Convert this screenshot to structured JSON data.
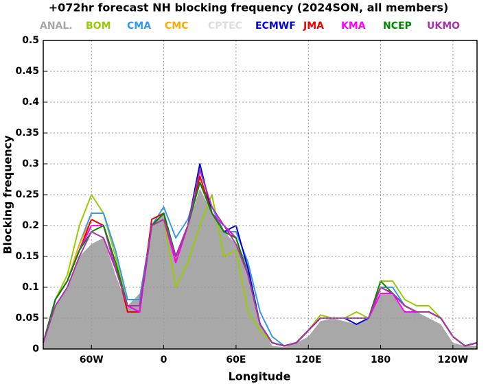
{
  "chart_data": {
    "type": "line",
    "title": "+072hr forecast NH blocking frequency (2024SON, all members)",
    "x_label": "Longitude",
    "y_label": "Blocking frequency",
    "xlim": [
      -100,
      260
    ],
    "ylim": [
      0,
      0.5
    ],
    "xticks": [
      {
        "value": -60,
        "label": "60W"
      },
      0,
      {
        "value": 60,
        "label": "60E"
      },
      {
        "value": 120,
        "label": "120E"
      },
      180,
      {
        "value": 240,
        "label": "120W"
      }
    ],
    "yticks": [
      0,
      0.05,
      0.1,
      0.15,
      0.2,
      0.25,
      0.3,
      0.35,
      0.4,
      0.45,
      0.5
    ],
    "grid": true,
    "x": [
      -100,
      -90,
      -80,
      -70,
      -60,
      -50,
      -40,
      -30,
      -20,
      -10,
      0,
      10,
      20,
      30,
      40,
      50,
      60,
      70,
      80,
      90,
      100,
      110,
      120,
      130,
      140,
      150,
      160,
      170,
      180,
      190,
      200,
      210,
      220,
      230,
      240,
      250,
      260
    ],
    "series": [
      {
        "name": "ANAL.",
        "color": "#a8a8a8",
        "style": "area",
        "values": [
          0.01,
          0.07,
          0.1,
          0.15,
          0.17,
          0.18,
          0.12,
          0.07,
          0.09,
          0.2,
          0.22,
          0.15,
          0.2,
          0.26,
          0.22,
          0.19,
          0.17,
          0.14,
          0.04,
          0.005,
          0.003,
          0.01,
          0.02,
          0.045,
          0.05,
          0.045,
          0.04,
          0.05,
          0.09,
          0.09,
          0.06,
          0.06,
          0.05,
          0.04,
          0.01,
          0.005,
          0.005
        ]
      },
      {
        "name": "BOM",
        "color": "#99cc00",
        "values": [
          0.01,
          0.08,
          0.12,
          0.2,
          0.25,
          0.22,
          0.15,
          0.07,
          0.06,
          0.2,
          0.21,
          0.1,
          0.14,
          0.2,
          0.25,
          0.15,
          0.16,
          0.06,
          0.03,
          0.01,
          0.005,
          0.01,
          0.03,
          0.055,
          0.05,
          0.05,
          0.06,
          0.05,
          0.11,
          0.11,
          0.08,
          0.07,
          0.07,
          0.05,
          0.02,
          0.005,
          0.01
        ]
      },
      {
        "name": "CMA",
        "color": "#3399ee",
        "values": [
          0.01,
          0.08,
          0.11,
          0.17,
          0.22,
          0.22,
          0.16,
          0.08,
          0.08,
          0.2,
          0.23,
          0.18,
          0.21,
          0.27,
          0.23,
          0.19,
          0.19,
          0.14,
          0.06,
          0.02,
          0.005,
          0.01,
          0.03,
          0.05,
          0.05,
          0.05,
          0.05,
          0.05,
          0.1,
          0.1,
          0.07,
          0.06,
          0.06,
          0.05,
          0.02,
          0.005,
          0.01
        ]
      },
      {
        "name": "CMC",
        "color": "#ffaa00",
        "values": [
          0.01,
          0.08,
          0.11,
          0.17,
          0.21,
          0.2,
          0.14,
          0.06,
          0.06,
          0.2,
          0.22,
          0.14,
          0.2,
          0.28,
          0.22,
          0.19,
          0.18,
          0.12,
          0.04,
          0.01,
          0.005,
          0.01,
          0.03,
          0.05,
          0.05,
          0.05,
          0.05,
          0.05,
          0.1,
          0.09,
          0.07,
          0.06,
          0.06,
          0.05,
          0.02,
          0.005,
          0.01
        ]
      },
      {
        "name": "CPTEC",
        "color": "#dddddd",
        "values": [
          0.01,
          0.08,
          0.11,
          0.16,
          0.2,
          0.2,
          0.14,
          0.07,
          0.07,
          0.2,
          0.22,
          0.15,
          0.2,
          0.27,
          0.22,
          0.19,
          0.18,
          0.12,
          0.04,
          0.01,
          0.005,
          0.01,
          0.03,
          0.05,
          0.05,
          0.05,
          0.05,
          0.05,
          0.1,
          0.09,
          0.07,
          0.06,
          0.06,
          0.05,
          0.02,
          0.005,
          0.01
        ]
      },
      {
        "name": "ECMWF",
        "color": "#0000dd",
        "values": [
          0.01,
          0.08,
          0.11,
          0.16,
          0.2,
          0.2,
          0.14,
          0.07,
          0.06,
          0.2,
          0.22,
          0.15,
          0.2,
          0.3,
          0.22,
          0.19,
          0.2,
          0.13,
          0.04,
          0.01,
          0.005,
          0.01,
          0.03,
          0.05,
          0.05,
          0.05,
          0.04,
          0.05,
          0.1,
          0.09,
          0.07,
          0.06,
          0.06,
          0.05,
          0.02,
          0.005,
          0.01
        ]
      },
      {
        "name": "JMA",
        "color": "#ee0000",
        "values": [
          0.01,
          0.08,
          0.11,
          0.16,
          0.21,
          0.2,
          0.14,
          0.06,
          0.06,
          0.21,
          0.22,
          0.14,
          0.2,
          0.28,
          0.22,
          0.19,
          0.18,
          0.12,
          0.04,
          0.01,
          0.005,
          0.01,
          0.03,
          0.05,
          0.05,
          0.05,
          0.05,
          0.05,
          0.1,
          0.09,
          0.07,
          0.06,
          0.06,
          0.05,
          0.02,
          0.005,
          0.01
        ]
      },
      {
        "name": "KMA",
        "color": "#ff00ff",
        "values": [
          0.01,
          0.08,
          0.11,
          0.16,
          0.2,
          0.2,
          0.13,
          0.07,
          0.06,
          0.2,
          0.21,
          0.14,
          0.2,
          0.27,
          0.22,
          0.2,
          0.18,
          0.12,
          0.04,
          0.01,
          0.005,
          0.01,
          0.03,
          0.05,
          0.05,
          0.05,
          0.05,
          0.05,
          0.09,
          0.09,
          0.06,
          0.06,
          0.06,
          0.05,
          0.02,
          0.005,
          0.01
        ]
      },
      {
        "name": "NCEP",
        "color": "#008800",
        "values": [
          0.01,
          0.08,
          0.11,
          0.16,
          0.19,
          0.2,
          0.14,
          0.07,
          0.07,
          0.2,
          0.22,
          0.15,
          0.2,
          0.27,
          0.22,
          0.19,
          0.18,
          0.12,
          0.04,
          0.01,
          0.005,
          0.01,
          0.03,
          0.05,
          0.05,
          0.05,
          0.05,
          0.05,
          0.11,
          0.09,
          0.07,
          0.06,
          0.06,
          0.05,
          0.02,
          0.005,
          0.01
        ]
      },
      {
        "name": "UKMO",
        "color": "#aa33aa",
        "values": [
          0.01,
          0.07,
          0.1,
          0.15,
          0.19,
          0.18,
          0.13,
          0.07,
          0.07,
          0.2,
          0.21,
          0.15,
          0.2,
          0.29,
          0.23,
          0.2,
          0.17,
          0.12,
          0.04,
          0.01,
          0.005,
          0.01,
          0.03,
          0.05,
          0.05,
          0.05,
          0.05,
          0.05,
          0.1,
          0.09,
          0.07,
          0.06,
          0.06,
          0.05,
          0.02,
          0.005,
          0.01
        ]
      }
    ]
  }
}
